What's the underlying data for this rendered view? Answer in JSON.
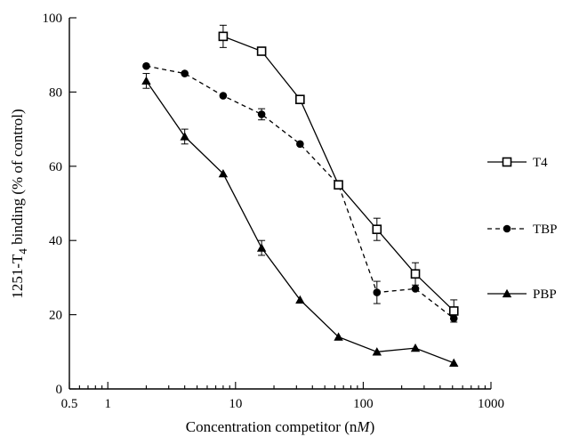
{
  "chart_data": {
    "type": "line",
    "xlabel_main": "Concentration competitor (n",
    "xlabel_unit": "M",
    "xlabel_close": ")",
    "ylabel_pre": "1251-T",
    "ylabel_sub": "4",
    "ylabel_post": " binding (% of control)",
    "x_scale": "log",
    "xlim": [
      0.5,
      1000
    ],
    "ylim": [
      0,
      100
    ],
    "x_ticks": [
      0.5,
      1,
      10,
      100,
      1000
    ],
    "x_tick_labels": [
      "0.5",
      "1",
      "10",
      "100",
      "1000"
    ],
    "y_ticks": [
      0,
      20,
      40,
      60,
      80,
      100
    ],
    "y_tick_labels": [
      "0",
      "20",
      "40",
      "60",
      "80",
      "100"
    ],
    "grid": false,
    "legend_position": "right",
    "series": [
      {
        "name": "T4",
        "style": "solid",
        "marker": "open-square",
        "x": [
          8,
          16,
          32,
          64,
          128,
          256,
          512
        ],
        "y": [
          95,
          91,
          78,
          55,
          43,
          31,
          21
        ],
        "err": [
          3,
          1,
          1,
          1,
          3,
          3,
          3
        ]
      },
      {
        "name": "TBP",
        "style": "dashed",
        "marker": "filled-circle",
        "x": [
          2,
          4,
          8,
          16,
          32,
          64,
          128,
          256,
          512
        ],
        "y": [
          87,
          85,
          79,
          74,
          66,
          55,
          26,
          27,
          19
        ],
        "err": [
          0,
          0,
          0,
          1.5,
          0,
          0,
          3,
          0,
          0
        ]
      },
      {
        "name": "PBP",
        "style": "solid",
        "marker": "filled-triangle",
        "x": [
          2,
          4,
          8,
          16,
          32,
          64,
          128,
          256,
          512
        ],
        "y": [
          83,
          68,
          58,
          38,
          24,
          14,
          10,
          11,
          7
        ],
        "err": [
          2,
          2,
          0,
          2,
          0,
          0,
          0,
          0,
          0
        ]
      }
    ]
  }
}
